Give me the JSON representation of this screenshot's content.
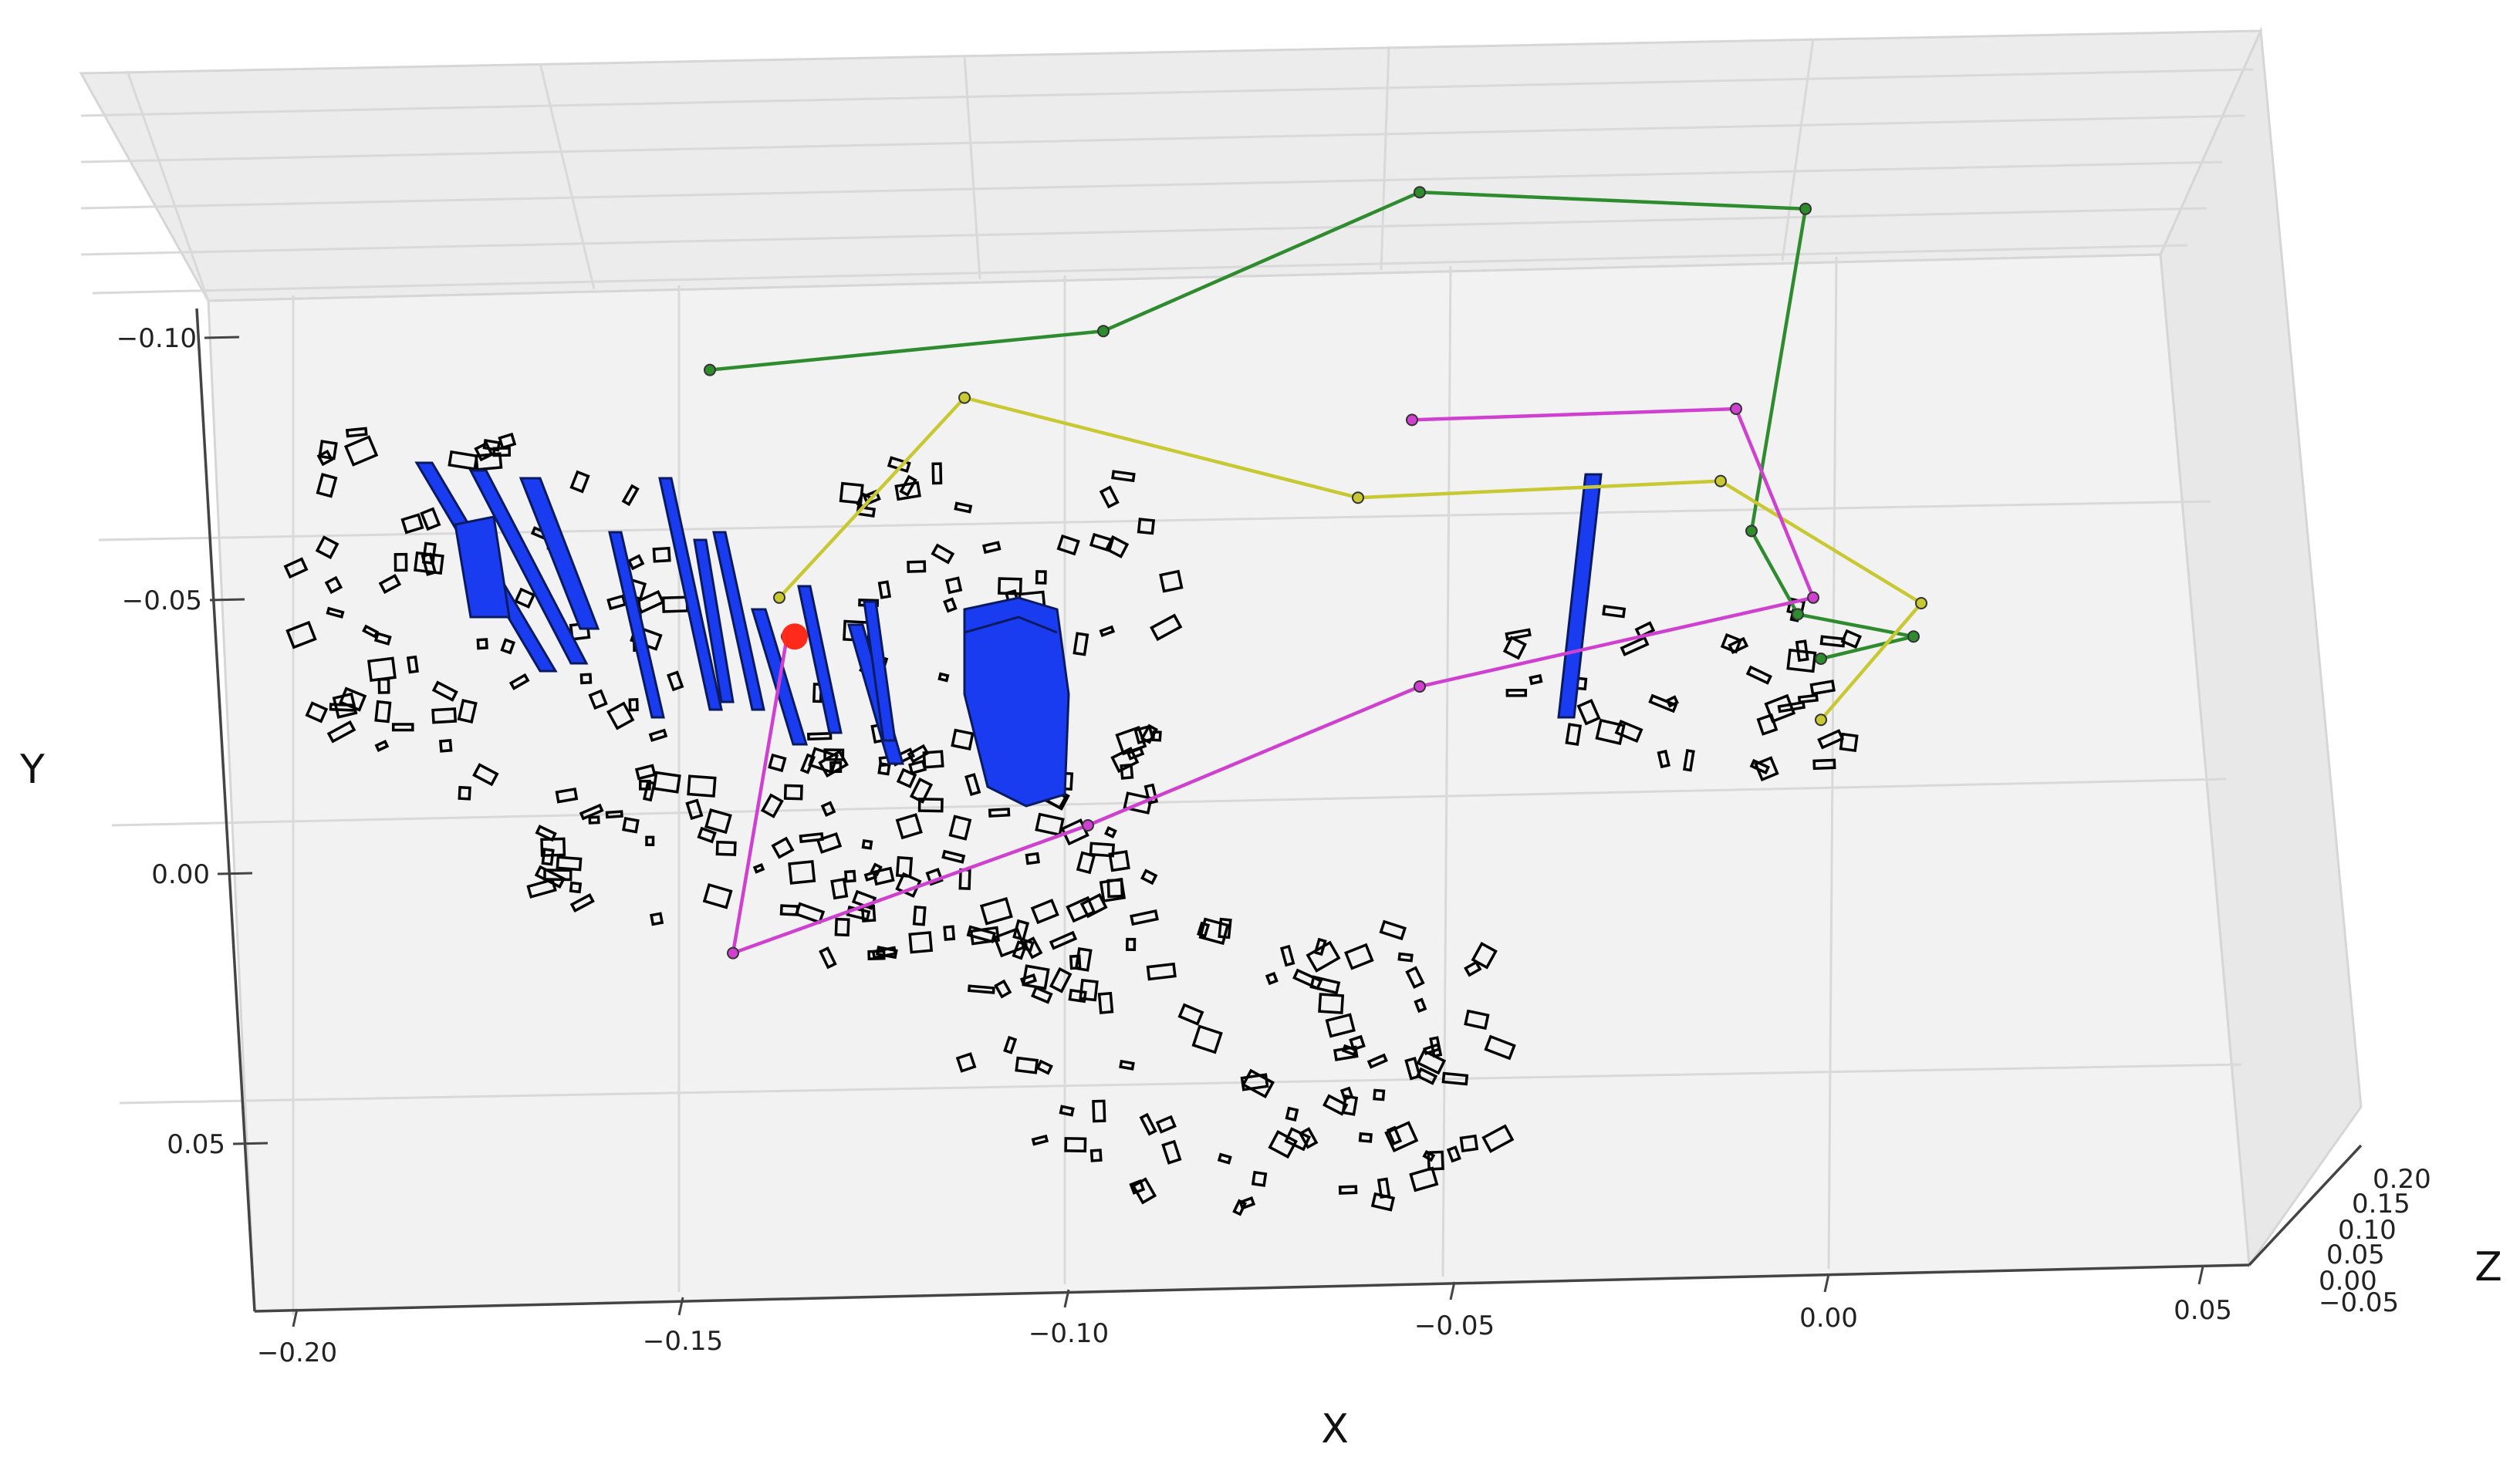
{
  "chart_data": {
    "type": "scatter",
    "projection": "3d",
    "title": "",
    "xlabel": "X",
    "ylabel": "Y",
    "zlabel": "Z",
    "xlim": [
      -0.2,
      0.05
    ],
    "ylim": [
      -0.1,
      0.07
    ],
    "zlim": [
      -0.05,
      0.2
    ],
    "x_ticks": [
      "−0.20",
      "−0.15",
      "−0.10",
      "−0.05",
      "0.00",
      "0.05"
    ],
    "y_ticks": [
      "−0.10",
      "−0.05",
      "0.00",
      "0.05"
    ],
    "z_ticks": [
      "−0.05",
      "0.00",
      "0.05",
      "0.10",
      "0.15",
      "0.20"
    ],
    "grid": true,
    "legend": "none",
    "series": [
      {
        "color": "#2e8b2e",
        "points": [
          [
            -0.146,
            -0.082
          ],
          [
            -0.095,
            -0.089
          ],
          [
            -0.054,
            -0.114
          ],
          [
            -0.004,
            -0.111
          ],
          [
            -0.011,
            -0.053
          ],
          [
            -0.005,
            -0.038
          ],
          [
            0.01,
            -0.034
          ],
          [
            -0.002,
            -0.03
          ]
        ]
      },
      {
        "color": "#c8c832",
        "points": [
          [
            -0.137,
            -0.041
          ],
          [
            -0.113,
            -0.077
          ],
          [
            -0.062,
            -0.059
          ],
          [
            -0.015,
            -0.062
          ],
          [
            0.011,
            -0.04
          ],
          [
            -0.002,
            -0.019
          ]
        ]
      },
      {
        "color": "#d040d0",
        "points": [
          [
            -0.055,
            -0.073
          ],
          [
            -0.013,
            -0.075
          ],
          [
            -0.003,
            -0.041
          ],
          [
            -0.054,
            -0.025
          ],
          [
            -0.097,
            0.0
          ],
          [
            -0.143,
            0.023
          ],
          [
            -0.136,
            -0.034
          ]
        ]
      }
    ],
    "marker": {
      "color": "#ff2a1a",
      "point": [
        -0.135,
        -0.034
      ]
    },
    "bar_color": "#1a3cf0"
  }
}
